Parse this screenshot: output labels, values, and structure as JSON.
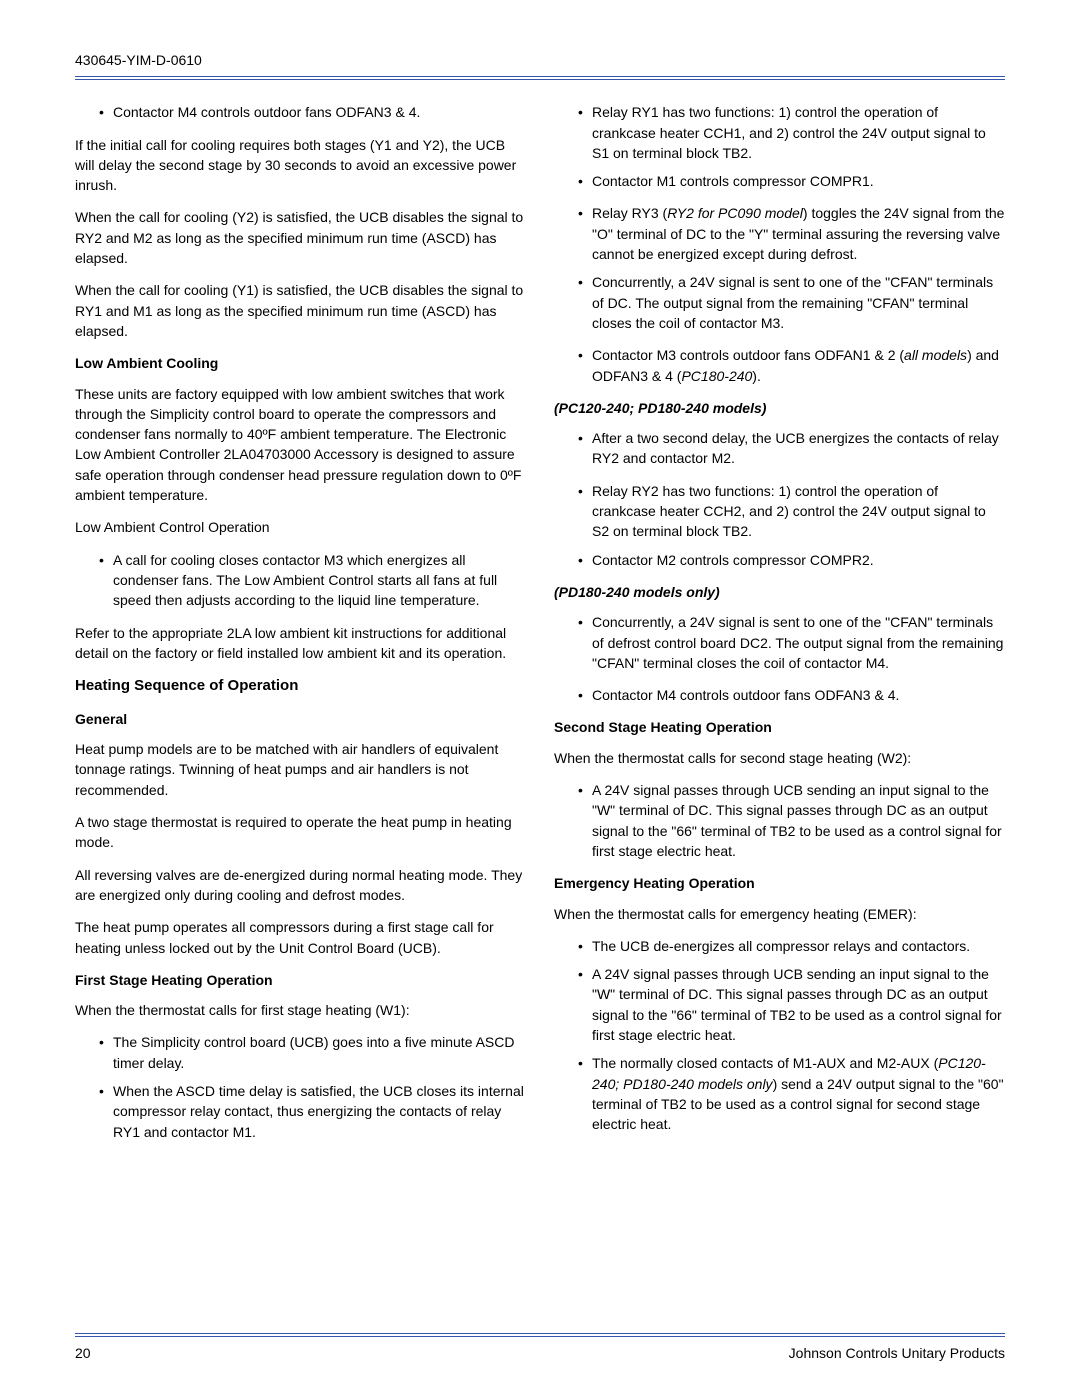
{
  "header": {
    "docid": "430645-YIM-D-0610"
  },
  "footer": {
    "page": "20",
    "publisher": "Johnson Controls Unitary Products"
  },
  "left": {
    "b1_li1": "Contactor M4 controls outdoor fans ODFAN3 & 4.",
    "p1": "If the initial call for cooling requires both stages (Y1 and Y2), the UCB will delay the second stage by 30 seconds to avoid an excessive power inrush.",
    "p2": "When the call for cooling (Y2) is satisfied, the UCB disables the signal to RY2 and M2 as long as the specified minimum run time (ASCD) has elapsed.",
    "p3": "When the call for cooling (Y1) is satisfied, the UCB disables the signal to RY1 and M1 as long as the specified minimum run time (ASCD) has elapsed.",
    "h1": "Low Ambient Cooling",
    "p4": "These units are factory equipped with low ambient switches that work through the Simplicity control board to operate the compressors and condenser fans normally to 40ºF ambient temperature. The Electronic Low Ambient Controller 2LA04703000 Accessory is designed to assure safe operation through condenser head pressure regulation down to 0ºF ambient temperature.",
    "p5": "Low Ambient Control Operation",
    "b2_li1": "A call for cooling closes contactor M3 which energizes all condenser fans. The Low Ambient Control starts all fans at full speed then adjusts according to the liquid line temperature.",
    "p6": "Refer to the appropriate 2LA low ambient kit instructions for additional detail on the factory or field installed low ambient kit and its operation.",
    "h2": "Heating Sequence of Operation",
    "h3": "General",
    "p7": "Heat pump models are to be matched with air handlers of equivalent tonnage ratings.  Twinning of heat pumps and air handlers is not recommended.",
    "p8": "A two stage thermostat is required to operate the heat pump in heating mode.",
    "p9": "All reversing valves are de-energized during normal heating mode.  They are energized only during cooling and defrost modes.",
    "p10": "The heat pump operates all compressors during a first stage call for heating unless locked out by the Unit Control Board (UCB).",
    "h4": "First Stage Heating Operation",
    "p11": "When the thermostat calls for first stage heating (W1):",
    "b3_li1": "The Simplicity control board (UCB) goes into a five minute ASCD timer delay.",
    "b3_li2": "When the ASCD time delay is satisfied, the UCB closes its internal compressor relay contact, thus energizing the contacts of relay RY1 and contactor M1."
  },
  "right": {
    "b1_li1": "Relay RY1 has two functions: 1) control the operation of crankcase heater CCH1, and 2) control the 24V output signal to S1 on terminal block TB2.",
    "b1_li2": "Contactor M1 controls compressor COMPR1.",
    "b2_li1_pre": "Relay RY3 (",
    "b2_li1_it": "RY2 for PC090 model",
    "b2_li1_post": ") toggles the 24V signal from the \"O\" terminal of DC to the \"Y\" terminal assuring the reversing valve cannot be energized except during defrost.",
    "b2_li2": "Concurrently, a 24V signal is sent to one of the \"CFAN\" terminals of DC.  The output signal from the remaining \"CFAN\" terminal closes the coil of contactor M3.",
    "b2_li2a_pre": "Contactor M3 controls outdoor fans ODFAN1 & 2 (",
    "b2_li2a_it1": "all models",
    "b2_li2a_mid": ") and ODFAN3 & 4 (",
    "b2_li2a_it2": "PC180-240",
    "b2_li2a_post": ").",
    "h1": "(PC120-240; PD180-240 models)",
    "b3_li1": "After a two second delay, the UCB energizes the contacts of relay RY2 and contactor M2.",
    "b3_li1a": "Relay RY2 has two functions: 1) control the operation of crankcase heater CCH2, and 2) control the 24V output signal to S2 on terminal block TB2.",
    "b3_li1b": "Contactor M2 controls compressor COMPR2.",
    "h2": "(PD180-240 models only)",
    "b4_li1": "Concurrently, a 24V signal is sent to one of the \"CFAN\" terminals of defrost control board DC2.  The output signal from the remaining \"CFAN\" terminal closes the coil of contactor M4.",
    "b4_li1a": "Contactor M4 controls outdoor fans ODFAN3 & 4.",
    "h3": "Second Stage Heating Operation",
    "p1": "When the thermostat calls for second stage heating (W2):",
    "b5_li1": "A 24V signal passes through UCB sending an input signal to the \"W\" terminal of DC.  This signal passes through DC as an output signal to the \"66\" terminal of TB2 to be used as a control signal for first stage electric heat.",
    "h4": "Emergency Heating Operation",
    "p2": "When the thermostat calls for emergency heating (EMER):",
    "b6_li1": "The UCB de-energizes all compressor relays and contactors.",
    "b6_li2": "A 24V signal passes through UCB sending an input signal to the \"W\" terminal of DC.  This signal passes through DC as an output signal to the \"66\" terminal of TB2 to be used as a control signal for first stage electric heat.",
    "b6_li3_pre": "The normally closed contacts of M1-AUX and M2-AUX (",
    "b6_li3_it": "PC120-240; PD180-240 models only",
    "b6_li3_post": ") send a 24V output signal to the \"60\" terminal of TB2 to be used as a control signal for second stage electric heat."
  }
}
